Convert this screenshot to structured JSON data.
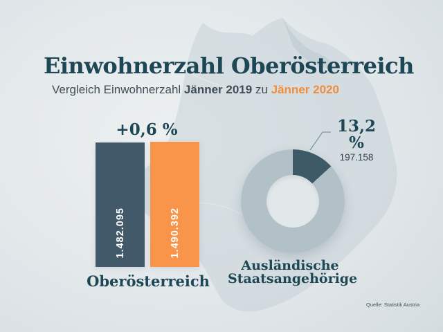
{
  "header": {
    "title": "Einwohnerzahl Oberösterreich",
    "subtitle": {
      "prefix": "Vergleich Einwohnerzahl",
      "period_2019": "Jänner 2019",
      "connector": "zu",
      "period_2020": "Jänner 2020"
    }
  },
  "chart_data": [
    {
      "type": "bar",
      "title": "+0,6 %",
      "categories": [
        "Jänner 2019",
        "Jänner 2020"
      ],
      "series": [
        {
          "name": "Einwohnerzahl",
          "values": [
            1482095,
            1490392
          ]
        }
      ],
      "value_labels": [
        "1.482.095",
        "1.490.392"
      ],
      "xlabel": "Oberösterreich",
      "bar_colors": [
        "#42596a",
        "#f8954a"
      ],
      "ylim": [
        0,
        1490392
      ],
      "grid": false,
      "legend": "none"
    },
    {
      "type": "donut",
      "slices": [
        {
          "label": "Ausländische Staatsangehörige",
          "percent": 13.2,
          "value": 197158,
          "color": "#3d5a66"
        },
        {
          "label": "",
          "percent": 86.8,
          "color": "#b2c1c8"
        }
      ],
      "start_angle_deg": 0,
      "callout": {
        "percent_label": "13,2 %",
        "value_label": "197.158"
      },
      "label_lines": [
        "Ausländische",
        "Staatsangehörige"
      ]
    }
  ],
  "footer": {
    "source": "Quelle: Statistik Austria"
  },
  "colors": {
    "title_teal": "#1d4754",
    "subtitle_gray": "#3f4d56",
    "accent_orange": "#f08d3c",
    "bar_dark": "#42596a",
    "bar_orange": "#f8954a",
    "donut_dark": "#3d5a66",
    "donut_light": "#b2c1c8",
    "donut_hole": "#e2e8ea",
    "background": "#dfe5e8",
    "map_fill": "#c6d2d8"
  }
}
